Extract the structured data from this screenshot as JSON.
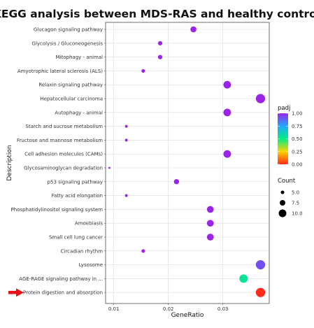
{
  "chart_data": {
    "type": "scatter",
    "title": "KEGG analysis between MDS-RAS and healthy control",
    "xlabel": "GeneRatio",
    "ylabel": "Description",
    "xlim": [
      0.0085,
      0.0385
    ],
    "x_ticks": [
      "0.01",
      "0.02",
      "0.03"
    ],
    "x_tick_values": [
      0.01,
      0.02,
      0.03
    ],
    "grid": true,
    "categories": [
      "Glucagon signaling pathway",
      "Glycolysis / Gluconeogenesis",
      "Mitophagy - animal",
      "Amyotrophic lateral sclerosis (ALS)",
      "Relaxin signaling pathway",
      "Hepatocellular carcinoma",
      "Autophagy - animal",
      "Starch and sucrose metabolism",
      "Fructose and mannose metabolism",
      "Cell adhesion molecules (CAMs)",
      "Glycosaminoglycan degradation",
      "p53 signaling pathway",
      "Fatty acid elongation",
      "Phosphatidylinositol signaling system",
      "Amoebiasis",
      "Small cell lung cancer",
      "Circadian rhythm",
      "Lysosome",
      "AGE-RAGE signaling pathway in ...",
      "Protein digestion and absorption"
    ],
    "points": [
      {
        "x": 0.0246,
        "count": 8,
        "padj": 1.0
      },
      {
        "x": 0.0185,
        "count": 6,
        "padj": 1.0
      },
      {
        "x": 0.0185,
        "count": 6,
        "padj": 1.0
      },
      {
        "x": 0.0154,
        "count": 5,
        "padj": 1.0
      },
      {
        "x": 0.0308,
        "count": 10,
        "padj": 1.0
      },
      {
        "x": 0.0369,
        "count": 12,
        "padj": 1.0
      },
      {
        "x": 0.0308,
        "count": 10,
        "padj": 1.0
      },
      {
        "x": 0.0123,
        "count": 4,
        "padj": 1.0
      },
      {
        "x": 0.0123,
        "count": 4,
        "padj": 1.0
      },
      {
        "x": 0.0308,
        "count": 10,
        "padj": 1.0
      },
      {
        "x": 0.0092,
        "count": 3,
        "padj": 1.0
      },
      {
        "x": 0.0215,
        "count": 7,
        "padj": 1.0
      },
      {
        "x": 0.0123,
        "count": 4,
        "padj": 1.0
      },
      {
        "x": 0.0277,
        "count": 9,
        "padj": 1.0
      },
      {
        "x": 0.0277,
        "count": 9,
        "padj": 1.0
      },
      {
        "x": 0.0277,
        "count": 9,
        "padj": 1.0
      },
      {
        "x": 0.0154,
        "count": 5,
        "padj": 1.0
      },
      {
        "x": 0.0369,
        "count": 12,
        "padj": 0.92
      },
      {
        "x": 0.0338,
        "count": 11,
        "padj": 0.55
      },
      {
        "x": 0.0369,
        "count": 12,
        "padj": 0.0
      }
    ],
    "legend_padj": {
      "title": "padj",
      "ticks": [
        "1.00",
        "0.75",
        "0.50",
        "0.25",
        "0.00"
      ],
      "tick_values": [
        1.0,
        0.75,
        0.5,
        0.25,
        0.0
      ],
      "colors": [
        "#ff2a1a",
        "#ffd200",
        "#00f080",
        "#1fa8ff",
        "#9a24e8"
      ]
    },
    "legend_count": {
      "title": "Count",
      "labels": [
        "5.0",
        "7.5",
        "10.0"
      ],
      "values": [
        5,
        7.5,
        10
      ]
    },
    "arrow_color": "#e8111a",
    "arrow_target": "Protein digestion and absorption",
    "colors": {
      "panel_bg": "#ffffff",
      "grid": "#dcdcdc",
      "panel_border": "#4d4d4d",
      "protein_point": "#d4942a",
      "age_rage_point": "#1dd0d8",
      "lysosome_point": "#8a3ee0"
    }
  }
}
